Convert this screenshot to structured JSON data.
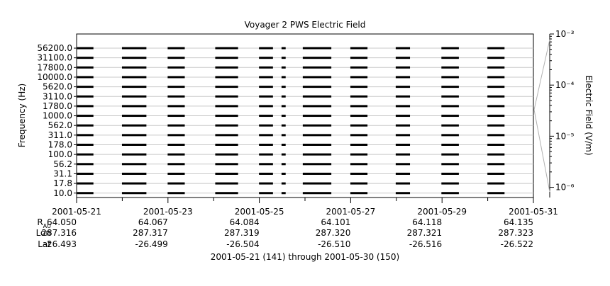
{
  "chart_data": {
    "type": "line",
    "title": "Voyager 2 PWS Electric Field",
    "ylabel": "Frequency (Hz)",
    "y2label": "Electric Field (V/m)",
    "subtitle": "2001-05-21 (141) through 2001-05-30 (150)",
    "channels": [
      "56200.0",
      "31100.0",
      "17800.0",
      "10000.0",
      "5620.0",
      "3110.0",
      "1780.0",
      "1000.0",
      "562.0",
      "311.0",
      "178.0",
      "100.0",
      "56.2",
      "31.1",
      "17.8",
      "10.0"
    ],
    "colorbar_ticks": [
      "10⁻³",
      "10⁻⁴",
      "10⁻⁵",
      "10⁻⁶"
    ],
    "colorbar_exponents": [
      -3,
      -4,
      -5,
      -6
    ],
    "colorbar_range": [
      -6.2,
      -3
    ],
    "x_range": [
      "2001-05-21",
      "2001-05-31"
    ],
    "x_ticks": [
      "2001-05-21",
      "2001-05-23",
      "2001-05-25",
      "2001-05-27",
      "2001-05-29",
      "2001-05-31"
    ],
    "ephemeris_labels": {
      "r": "R",
      "r_sub": "AU",
      "lon": "Lon",
      "lat": "Lat"
    },
    "ephemeris": {
      "r": [
        "64.050",
        "64.067",
        "64.084",
        "64.101",
        "64.118",
        "64.135"
      ],
      "lon": [
        "287.316",
        "287.317",
        "287.319",
        "287.320",
        "287.321",
        "287.323"
      ],
      "lat": [
        "-26.493",
        "-26.499",
        "-26.504",
        "-26.510",
        "-26.516",
        "-26.522"
      ]
    },
    "data_segments": [
      [
        "2001-05-21T00:10",
        "2001-05-21T08:50"
      ],
      [
        "2001-05-21T23:50",
        "2001-05-22T12:40"
      ],
      [
        "2001-05-22T23:50",
        "2001-05-23T08:50"
      ],
      [
        "2001-05-24T00:50",
        "2001-05-24T12:50"
      ],
      [
        "2001-05-24T23:50",
        "2001-05-25T07:10"
      ],
      [
        "2001-05-25T11:40",
        "2001-05-25T13:50"
      ],
      [
        "2001-05-25T22:50",
        "2001-05-26T13:50"
      ],
      [
        "2001-05-26T23:50",
        "2001-05-27T08:50"
      ],
      [
        "2001-05-27T23:40",
        "2001-05-28T07:10"
      ],
      [
        "2001-05-28T23:40",
        "2001-05-29T08:50"
      ],
      [
        "2001-05-29T23:50",
        "2001-05-30T08:50"
      ]
    ]
  }
}
